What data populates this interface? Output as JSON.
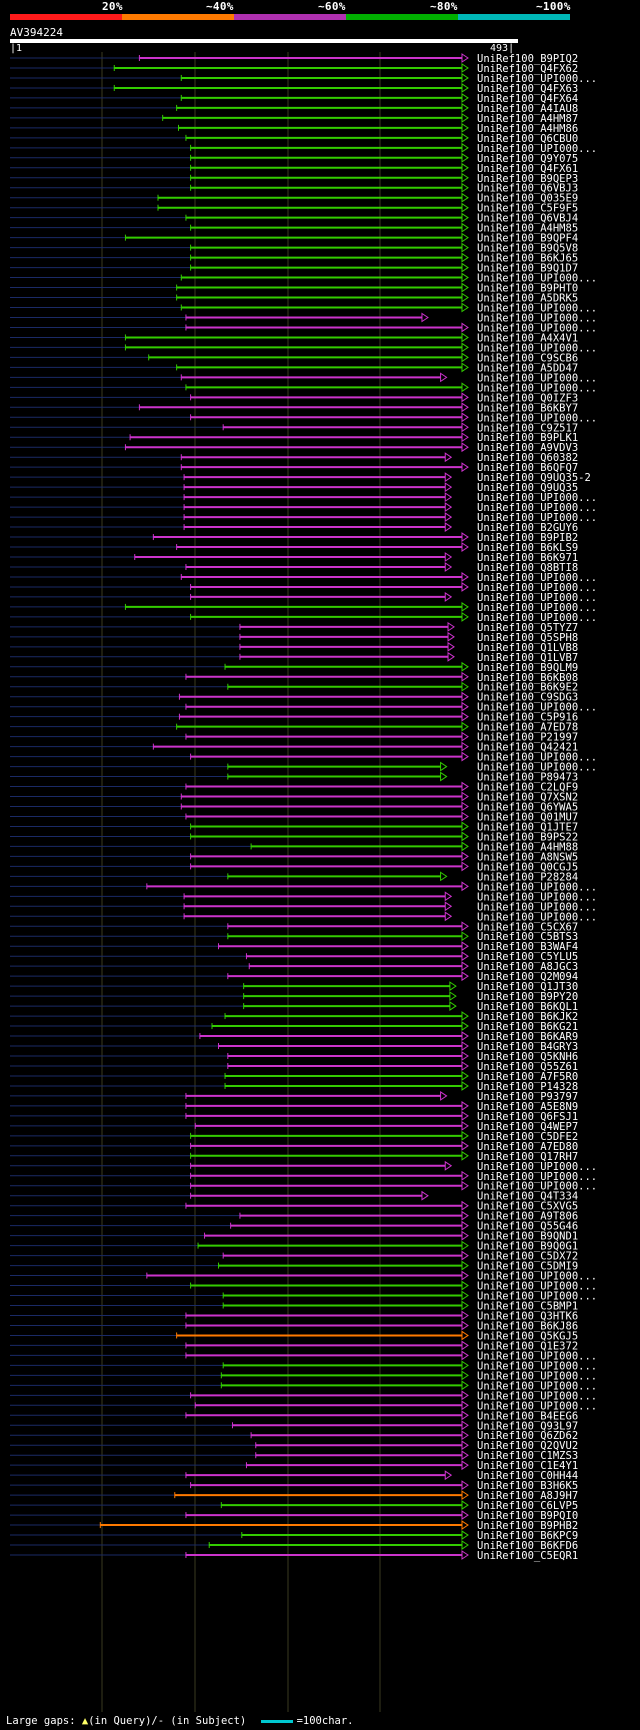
{
  "query": {
    "id": "AV394224",
    "start": "1",
    "end": "493",
    "length": 493
  },
  "scale": [
    {
      "label": "20%",
      "color": "#ff1a1a"
    },
    {
      "label": "~40%",
      "color": "#ff7a00"
    },
    {
      "label": "~60%",
      "color": "#b030b0"
    },
    {
      "label": "~80%",
      "color": "#00b000"
    },
    {
      "label": "~100%",
      "color": "#00b8b8"
    }
  ],
  "footer": {
    "large_gaps": "Large gaps:",
    "in_query": "(in Query)/",
    "in_subject": "- (in Subject)",
    "scale_note": "=100char."
  },
  "chart_data": {
    "type": "alignment-overview",
    "title": "AV394224",
    "x_axis": {
      "min": 1,
      "max": 493,
      "unit": "query position"
    },
    "hits": [
      {
        "name": "UniRef100_B9PIQ2",
        "start": 140,
        "end": 493,
        "color": "magenta"
      },
      {
        "name": "UniRef100_Q4FX62",
        "start": 113,
        "end": 493,
        "color": "green"
      },
      {
        "name": "UniRef100_UPI000...",
        "start": 185,
        "end": 493,
        "color": "green"
      },
      {
        "name": "UniRef100_Q4FX63",
        "start": 113,
        "end": 493,
        "color": "green"
      },
      {
        "name": "UniRef100_Q4FX64",
        "start": 185,
        "end": 493,
        "color": "green"
      },
      {
        "name": "UniRef100_A4IAU8",
        "start": 180,
        "end": 493,
        "color": "green"
      },
      {
        "name": "UniRef100_A4HM87",
        "start": 165,
        "end": 493,
        "color": "green"
      },
      {
        "name": "UniRef100_A4HM86",
        "start": 182,
        "end": 493,
        "color": "green"
      },
      {
        "name": "UniRef100_Q6CBU0",
        "start": 190,
        "end": 493,
        "color": "green"
      },
      {
        "name": "UniRef100_UPI000...",
        "start": 195,
        "end": 493,
        "color": "green"
      },
      {
        "name": "UniRef100_Q9Y075",
        "start": 195,
        "end": 493,
        "color": "green"
      },
      {
        "name": "UniRef100_Q4FX61",
        "start": 195,
        "end": 493,
        "color": "green"
      },
      {
        "name": "UniRef100_B9QEP3",
        "start": 195,
        "end": 493,
        "color": "green"
      },
      {
        "name": "UniRef100_Q6VBJ3",
        "start": 195,
        "end": 493,
        "color": "green"
      },
      {
        "name": "UniRef100_Q035E9",
        "start": 160,
        "end": 493,
        "color": "green"
      },
      {
        "name": "UniRef100_C5F9F5",
        "start": 160,
        "end": 493,
        "color": "green"
      },
      {
        "name": "UniRef100_Q6VBJ4",
        "start": 190,
        "end": 493,
        "color": "green"
      },
      {
        "name": "UniRef100_A4HM85",
        "start": 195,
        "end": 493,
        "color": "green"
      },
      {
        "name": "UniRef100_B9QPF4",
        "start": 125,
        "end": 493,
        "color": "green"
      },
      {
        "name": "UniRef100_B9Q5V8",
        "start": 195,
        "end": 493,
        "color": "green"
      },
      {
        "name": "UniRef100_B6KJ65",
        "start": 195,
        "end": 493,
        "color": "green"
      },
      {
        "name": "UniRef100_B9Q1D7",
        "start": 195,
        "end": 493,
        "color": "green"
      },
      {
        "name": "UniRef100_UPI000...",
        "start": 185,
        "end": 493,
        "color": "green"
      },
      {
        "name": "UniRef100_B9PHT0",
        "start": 180,
        "end": 493,
        "color": "green"
      },
      {
        "name": "UniRef100_A5DRK5",
        "start": 180,
        "end": 493,
        "color": "green"
      },
      {
        "name": "UniRef100_UPI000...",
        "start": 185,
        "end": 493,
        "color": "green"
      },
      {
        "name": "UniRef100_UPI000...",
        "start": 190,
        "end": 450,
        "color": "magenta"
      },
      {
        "name": "UniRef100_UPI000...",
        "start": 190,
        "end": 493,
        "color": "magenta"
      },
      {
        "name": "UniRef100_A4X4V1",
        "start": 125,
        "end": 493,
        "color": "green"
      },
      {
        "name": "UniRef100_UPI000...",
        "start": 125,
        "end": 493,
        "color": "green"
      },
      {
        "name": "UniRef100_C9SCB6",
        "start": 150,
        "end": 493,
        "color": "green"
      },
      {
        "name": "UniRef100_A5DD47",
        "start": 180,
        "end": 493,
        "color": "green"
      },
      {
        "name": "UniRef100_UPI000...",
        "start": 185,
        "end": 470,
        "color": "magenta"
      },
      {
        "name": "UniRef100_UPI000...",
        "start": 190,
        "end": 493,
        "color": "green"
      },
      {
        "name": "UniRef100_Q0IZF3",
        "start": 195,
        "end": 493,
        "color": "magenta"
      },
      {
        "name": "UniRef100_B6KBY7",
        "start": 140,
        "end": 493,
        "color": "magenta"
      },
      {
        "name": "UniRef100_UPI000...",
        "start": 195,
        "end": 493,
        "color": "magenta"
      },
      {
        "name": "UniRef100_C9Z517",
        "start": 230,
        "end": 493,
        "color": "magenta"
      },
      {
        "name": "UniRef100_B9PLK1",
        "start": 130,
        "end": 493,
        "color": "magenta"
      },
      {
        "name": "UniRef100_A9VDV3",
        "start": 125,
        "end": 493,
        "color": "magenta"
      },
      {
        "name": "UniRef100_Q60382",
        "start": 185,
        "end": 475,
        "color": "magenta"
      },
      {
        "name": "UniRef100_B6QFQ7",
        "start": 185,
        "end": 493,
        "color": "magenta"
      },
      {
        "name": "UniRef100_Q9UQ35-2",
        "start": 188,
        "end": 475,
        "color": "magenta"
      },
      {
        "name": "UniRef100_Q9UQ35",
        "start": 188,
        "end": 475,
        "color": "magenta"
      },
      {
        "name": "UniRef100_UPI000...",
        "start": 188,
        "end": 475,
        "color": "magenta"
      },
      {
        "name": "UniRef100_UPI000...",
        "start": 188,
        "end": 475,
        "color": "magenta"
      },
      {
        "name": "UniRef100_UPI000...",
        "start": 188,
        "end": 475,
        "color": "magenta"
      },
      {
        "name": "UniRef100_B2GUY6",
        "start": 188,
        "end": 475,
        "color": "magenta"
      },
      {
        "name": "UniRef100_B9PIB2",
        "start": 155,
        "end": 493,
        "color": "magenta"
      },
      {
        "name": "UniRef100_B6KLS9",
        "start": 180,
        "end": 493,
        "color": "magenta"
      },
      {
        "name": "UniRef100_B6K971",
        "start": 135,
        "end": 475,
        "color": "magenta"
      },
      {
        "name": "UniRef100_Q8BTI8",
        "start": 190,
        "end": 475,
        "color": "magenta"
      },
      {
        "name": "UniRef100_UPI000...",
        "start": 185,
        "end": 493,
        "color": "magenta"
      },
      {
        "name": "UniRef100_UPI000...",
        "start": 195,
        "end": 493,
        "color": "magenta"
      },
      {
        "name": "UniRef100_UPI000...",
        "start": 195,
        "end": 475,
        "color": "magenta"
      },
      {
        "name": "UniRef100_UPI000...",
        "start": 125,
        "end": 493,
        "color": "green"
      },
      {
        "name": "UniRef100_UPI000...",
        "start": 195,
        "end": 493,
        "color": "green"
      },
      {
        "name": "UniRef100_Q5TYZ7",
        "start": 248,
        "end": 478,
        "color": "magenta"
      },
      {
        "name": "UniRef100_Q5SPH8",
        "start": 248,
        "end": 478,
        "color": "magenta"
      },
      {
        "name": "UniRef100_Q1LVB8",
        "start": 248,
        "end": 478,
        "color": "magenta"
      },
      {
        "name": "UniRef100_Q1LVB7",
        "start": 248,
        "end": 478,
        "color": "magenta"
      },
      {
        "name": "UniRef100_B9QLM9",
        "start": 232,
        "end": 493,
        "color": "green"
      },
      {
        "name": "UniRef100_B6KB08",
        "start": 190,
        "end": 493,
        "color": "magenta"
      },
      {
        "name": "UniRef100_B6K9E2",
        "start": 235,
        "end": 493,
        "color": "green"
      },
      {
        "name": "UniRef100_C9SDG3",
        "start": 183,
        "end": 493,
        "color": "magenta"
      },
      {
        "name": "UniRef100_UPI000...",
        "start": 190,
        "end": 493,
        "color": "magenta"
      },
      {
        "name": "UniRef100_C5P916",
        "start": 183,
        "end": 493,
        "color": "magenta"
      },
      {
        "name": "UniRef100_A7ED78",
        "start": 180,
        "end": 493,
        "color": "green"
      },
      {
        "name": "UniRef100_P21997",
        "start": 190,
        "end": 493,
        "color": "magenta"
      },
      {
        "name": "UniRef100_Q42421",
        "start": 155,
        "end": 493,
        "color": "magenta"
      },
      {
        "name": "UniRef100_UPI000...",
        "start": 195,
        "end": 493,
        "color": "magenta"
      },
      {
        "name": "UniRef100_UPI000...",
        "start": 235,
        "end": 470,
        "color": "green"
      },
      {
        "name": "UniRef100_P89473",
        "start": 235,
        "end": 470,
        "color": "green"
      },
      {
        "name": "UniRef100_C2LQF9",
        "start": 190,
        "end": 493,
        "color": "magenta"
      },
      {
        "name": "UniRef100_Q7XSN2",
        "start": 185,
        "end": 493,
        "color": "magenta"
      },
      {
        "name": "UniRef100_Q6YWA5",
        "start": 185,
        "end": 493,
        "color": "magenta"
      },
      {
        "name": "UniRef100_Q01MU7",
        "start": 190,
        "end": 493,
        "color": "magenta"
      },
      {
        "name": "UniRef100_Q1JTE7",
        "start": 195,
        "end": 493,
        "color": "green"
      },
      {
        "name": "UniRef100_B9PS22",
        "start": 195,
        "end": 493,
        "color": "green"
      },
      {
        "name": "UniRef100_A4HM88",
        "start": 260,
        "end": 493,
        "color": "green"
      },
      {
        "name": "UniRef100_A8NSW5",
        "start": 195,
        "end": 493,
        "color": "magenta"
      },
      {
        "name": "UniRef100_Q0CGJ5",
        "start": 195,
        "end": 493,
        "color": "magenta"
      },
      {
        "name": "UniRef100_P28284",
        "start": 235,
        "end": 470,
        "color": "green"
      },
      {
        "name": "UniRef100_UPI000...",
        "start": 148,
        "end": 493,
        "color": "magenta"
      },
      {
        "name": "UniRef100_UPI000...",
        "start": 188,
        "end": 475,
        "color": "magenta"
      },
      {
        "name": "UniRef100_UPI000...",
        "start": 188,
        "end": 475,
        "color": "magenta"
      },
      {
        "name": "UniRef100_UPI000...",
        "start": 188,
        "end": 475,
        "color": "magenta"
      },
      {
        "name": "UniRef100_C5CX67",
        "start": 235,
        "end": 493,
        "color": "magenta"
      },
      {
        "name": "UniRef100_C5BTS3",
        "start": 235,
        "end": 493,
        "color": "green"
      },
      {
        "name": "UniRef100_B3WAF4",
        "start": 225,
        "end": 493,
        "color": "magenta"
      },
      {
        "name": "UniRef100_C5YLU5",
        "start": 255,
        "end": 493,
        "color": "magenta"
      },
      {
        "name": "UniRef100_A8JGC3",
        "start": 258,
        "end": 493,
        "color": "magenta"
      },
      {
        "name": "UniRef100_Q2M094",
        "start": 235,
        "end": 493,
        "color": "magenta"
      },
      {
        "name": "UniRef100_Q1JT30",
        "start": 252,
        "end": 480,
        "color": "green"
      },
      {
        "name": "UniRef100_B9PY20",
        "start": 252,
        "end": 480,
        "color": "green"
      },
      {
        "name": "UniRef100_B6KQL1",
        "start": 252,
        "end": 480,
        "color": "green"
      },
      {
        "name": "UniRef100_B6KJK2",
        "start": 232,
        "end": 493,
        "color": "green"
      },
      {
        "name": "UniRef100_B6KG21",
        "start": 218,
        "end": 493,
        "color": "green"
      },
      {
        "name": "UniRef100_B6KAR9",
        "start": 205,
        "end": 493,
        "color": "magenta"
      },
      {
        "name": "UniRef100_B4GRY3",
        "start": 225,
        "end": 493,
        "color": "magenta"
      },
      {
        "name": "UniRef100_Q5KNH6",
        "start": 235,
        "end": 493,
        "color": "magenta"
      },
      {
        "name": "UniRef100_Q55Z61",
        "start": 235,
        "end": 493,
        "color": "magenta"
      },
      {
        "name": "UniRef100_A7F5R0",
        "start": 232,
        "end": 493,
        "color": "green"
      },
      {
        "name": "UniRef100_P14328",
        "start": 232,
        "end": 493,
        "color": "green"
      },
      {
        "name": "UniRef100_P93797",
        "start": 190,
        "end": 470,
        "color": "magenta"
      },
      {
        "name": "UniRef100_A5E8N9",
        "start": 190,
        "end": 493,
        "color": "magenta"
      },
      {
        "name": "UniRef100_Q6FSJ1",
        "start": 190,
        "end": 493,
        "color": "magenta"
      },
      {
        "name": "UniRef100_Q4WEP7",
        "start": 200,
        "end": 493,
        "color": "magenta"
      },
      {
        "name": "UniRef100_C5DFE2",
        "start": 195,
        "end": 493,
        "color": "green"
      },
      {
        "name": "UniRef100_A7ED80",
        "start": 195,
        "end": 493,
        "color": "magenta"
      },
      {
        "name": "UniRef100_Q17RH7",
        "start": 195,
        "end": 493,
        "color": "green"
      },
      {
        "name": "UniRef100_UPI000...",
        "start": 195,
        "end": 475,
        "color": "magenta"
      },
      {
        "name": "UniRef100_UPI000...",
        "start": 195,
        "end": 493,
        "color": "magenta"
      },
      {
        "name": "UniRef100_UPI000...",
        "start": 195,
        "end": 493,
        "color": "magenta"
      },
      {
        "name": "UniRef100_Q4T334",
        "start": 195,
        "end": 450,
        "color": "magenta"
      },
      {
        "name": "UniRef100_C5XVG5",
        "start": 190,
        "end": 493,
        "color": "magenta"
      },
      {
        "name": "UniRef100_A9T806",
        "start": 248,
        "end": 493,
        "color": "magenta"
      },
      {
        "name": "UniRef100_Q55G46",
        "start": 238,
        "end": 493,
        "color": "magenta"
      },
      {
        "name": "UniRef100_B9QND1",
        "start": 210,
        "end": 493,
        "color": "magenta"
      },
      {
        "name": "UniRef100_B9Q0G1",
        "start": 203,
        "end": 493,
        "color": "green"
      },
      {
        "name": "UniRef100_C5DX72",
        "start": 230,
        "end": 493,
        "color": "magenta"
      },
      {
        "name": "UniRef100_C5DMI9",
        "start": 225,
        "end": 493,
        "color": "green"
      },
      {
        "name": "UniRef100_UPI000...",
        "start": 148,
        "end": 493,
        "color": "magenta"
      },
      {
        "name": "UniRef100_UPI000...",
        "start": 195,
        "end": 493,
        "color": "green"
      },
      {
        "name": "UniRef100_UPI000...",
        "start": 230,
        "end": 493,
        "color": "green"
      },
      {
        "name": "UniRef100_C5BMP1",
        "start": 230,
        "end": 493,
        "color": "green"
      },
      {
        "name": "UniRef100_Q3HTK6",
        "start": 190,
        "end": 493,
        "color": "magenta"
      },
      {
        "name": "UniRef100_B6KJ86",
        "start": 190,
        "end": 493,
        "color": "magenta"
      },
      {
        "name": "UniRef100_Q5KGJ5",
        "start": 180,
        "end": 493,
        "color": "orange"
      },
      {
        "name": "UniRef100_Q1E372",
        "start": 190,
        "end": 493,
        "color": "magenta"
      },
      {
        "name": "UniRef100_UPI000...",
        "start": 190,
        "end": 493,
        "color": "magenta"
      },
      {
        "name": "UniRef100_UPI000...",
        "start": 230,
        "end": 493,
        "color": "green"
      },
      {
        "name": "UniRef100_UPI000...",
        "start": 228,
        "end": 493,
        "color": "green"
      },
      {
        "name": "UniRef100_UPI000...",
        "start": 228,
        "end": 493,
        "color": "green"
      },
      {
        "name": "UniRef100_UPI000...",
        "start": 195,
        "end": 493,
        "color": "magenta"
      },
      {
        "name": "UniRef100_UPI000...",
        "start": 200,
        "end": 493,
        "color": "magenta"
      },
      {
        "name": "UniRef100_B4EEG6",
        "start": 190,
        "end": 493,
        "color": "magenta"
      },
      {
        "name": "UniRef100_Q93L97",
        "start": 240,
        "end": 493,
        "color": "magenta"
      },
      {
        "name": "UniRef100_Q6ZD62",
        "start": 260,
        "end": 493,
        "color": "magenta"
      },
      {
        "name": "UniRef100_Q2QVU2",
        "start": 265,
        "end": 493,
        "color": "magenta"
      },
      {
        "name": "UniRef100_C1MZS3",
        "start": 265,
        "end": 493,
        "color": "magenta"
      },
      {
        "name": "UniRef100_C1E4Y1",
        "start": 255,
        "end": 493,
        "color": "magenta"
      },
      {
        "name": "UniRef100_C0HH44",
        "start": 190,
        "end": 475,
        "color": "magenta"
      },
      {
        "name": "UniRef100_B3H6K5",
        "start": 195,
        "end": 493,
        "color": "magenta"
      },
      {
        "name": "UniRef100_A8J9H7",
        "start": 178,
        "end": 493,
        "color": "orange"
      },
      {
        "name": "UniRef100_C6LVP5",
        "start": 228,
        "end": 493,
        "color": "green"
      },
      {
        "name": "UniRef100_B9PQI0",
        "start": 190,
        "end": 493,
        "color": "magenta"
      },
      {
        "name": "UniRef100_B9PHB2",
        "start": 98,
        "end": 493,
        "color": "orange"
      },
      {
        "name": "UniRef100_B6KPC9",
        "start": 250,
        "end": 493,
        "color": "green"
      },
      {
        "name": "UniRef100_B6KFD6",
        "start": 215,
        "end": 493,
        "color": "green"
      },
      {
        "name": "UniRef100_C5EQR1",
        "start": 190,
        "end": 493,
        "color": "magenta"
      }
    ]
  }
}
